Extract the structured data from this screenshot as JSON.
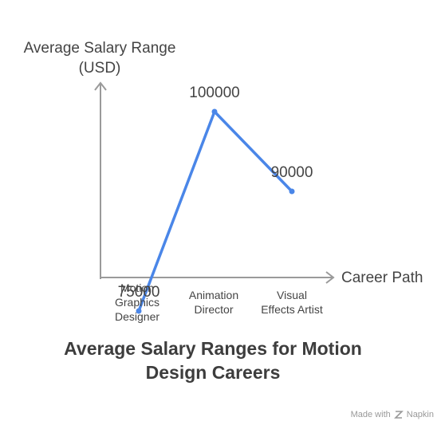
{
  "chart_data": {
    "type": "line",
    "title": "Average Salary Ranges for Motion Design Careers",
    "xlabel": "Career Path",
    "ylabel": "Average Salary Range (USD)",
    "categories": [
      "Motion Graphics Designer",
      "Animation Director",
      "Visual Effects Artist"
    ],
    "values": [
      75000,
      100000,
      90000
    ],
    "data_labels": [
      "75000",
      "100000",
      "90000"
    ],
    "ylim": [
      70000,
      105000
    ],
    "grid": false,
    "line_color": "#4a86e8",
    "axis_color": "#9a9a9a"
  },
  "ylabel_lines": [
    "Average Salary Range",
    "(USD)"
  ],
  "category_lines": [
    [
      "Motion",
      "Graphics",
      "Designer"
    ],
    [
      "Animation",
      "Director"
    ],
    [
      "Visual",
      "Effects Artist"
    ]
  ],
  "title_lines": [
    "Average Salary Ranges for Motion",
    "Design Careers"
  ],
  "footer": {
    "text": "Made with",
    "brand": "Napkin",
    "icon": "napkin-icon"
  }
}
